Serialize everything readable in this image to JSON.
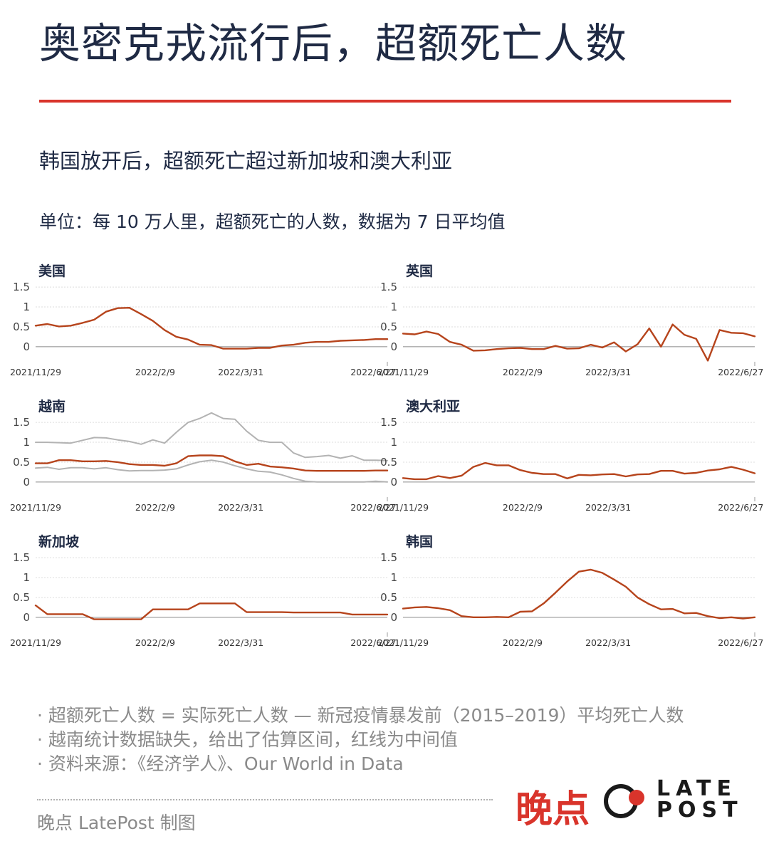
{
  "title": "奥密克戎流行后，超额死亡人数",
  "subtitle": "韩国放开后，超额死亡超过新加坡和澳大利亚",
  "unit": "单位：每 10 万人里，超额死亡的人数，数据为 7 日平均值",
  "colors": {
    "accent": "#d9342b",
    "series": "#b6441c",
    "range": "#b3b3b3",
    "text": "#1f2a44",
    "muted": "#8a8a8a"
  },
  "notes": [
    "· 超额死亡人数 = 实际死亡人数 — 新冠疫情暴发前（2015–2019）平均死亡人数",
    "· 越南统计数据缺失，给出了估算区间，红线为中间值",
    "· 资料来源：《经济学人》、Our World in Data"
  ],
  "credit": "晚点 LatePost 制图",
  "logo": {
    "cn": "晚点",
    "en_line1": "LATE",
    "en_line2": "POST"
  },
  "chart_data": [
    {
      "type": "line",
      "title": "美国",
      "ylim": [
        -0.2,
        1.7
      ],
      "yticks": [
        "1.5",
        "1",
        "0.5",
        "0"
      ],
      "xticks": [
        "2021/11/29",
        "2022/2/9",
        "2022/3/31",
        "2022/6/27"
      ],
      "series": [
        {
          "values": [
            0.53,
            0.57,
            0.51,
            0.53,
            0.6,
            0.68,
            0.88,
            0.97,
            0.98,
            0.82,
            0.65,
            0.42,
            0.25,
            0.18,
            0.05,
            0.04,
            -0.05,
            -0.05,
            -0.05,
            -0.03,
            -0.03,
            0.03,
            0.05,
            0.1,
            0.12,
            0.12,
            0.15,
            0.16,
            0.17,
            0.19,
            0.19
          ]
        }
      ]
    },
    {
      "type": "line",
      "title": "英国",
      "ylim": [
        -0.2,
        1.7
      ],
      "yticks": [
        "1.5",
        "1",
        "0.5",
        "0"
      ],
      "xticks": [
        "2021/11/29",
        "2022/2/9",
        "2022/3/31",
        "2022/6/27"
      ],
      "series": [
        {
          "values": [
            0.33,
            0.31,
            0.38,
            0.32,
            0.12,
            0.05,
            -0.1,
            -0.09,
            -0.06,
            -0.04,
            -0.03,
            -0.06,
            -0.06,
            0.02,
            -0.05,
            -0.04,
            0.05,
            -0.02,
            0.11,
            -0.12,
            0.06,
            0.46,
            0.0,
            0.56,
            0.3,
            0.2,
            -0.35,
            0.42,
            0.35,
            0.34,
            0.26
          ]
        }
      ]
    },
    {
      "type": "line",
      "title": "越南",
      "ylim": [
        -0.2,
        1.7
      ],
      "yticks": [
        "1.5",
        "1",
        "0.5",
        "0"
      ],
      "xticks": [
        "2021/11/29",
        "2022/2/9",
        "2022/3/31",
        "2022/6/27"
      ],
      "series": [
        {
          "name": "",
          "role": "upper",
          "values": [
            1.0,
            1.0,
            0.99,
            0.98,
            1.05,
            1.12,
            1.11,
            1.06,
            1.02,
            0.95,
            1.06,
            0.98,
            1.25,
            1.5,
            1.6,
            1.74,
            1.6,
            1.58,
            1.28,
            1.05,
            1.0,
            1.0,
            0.73,
            0.62,
            0.64,
            0.67,
            0.6,
            0.66,
            0.55,
            0.55,
            0.54
          ]
        },
        {
          "name": "",
          "role": "mid",
          "values": [
            0.47,
            0.47,
            0.55,
            0.55,
            0.52,
            0.52,
            0.53,
            0.5,
            0.45,
            0.43,
            0.43,
            0.41,
            0.47,
            0.65,
            0.67,
            0.67,
            0.65,
            0.52,
            0.43,
            0.46,
            0.39,
            0.37,
            0.34,
            0.29,
            0.28,
            0.28,
            0.28,
            0.28,
            0.28,
            0.29,
            0.29
          ]
        },
        {
          "name": "",
          "role": "lower",
          "values": [
            0.35,
            0.37,
            0.32,
            0.36,
            0.36,
            0.33,
            0.36,
            0.31,
            0.28,
            0.29,
            0.29,
            0.3,
            0.33,
            0.43,
            0.51,
            0.55,
            0.5,
            0.41,
            0.33,
            0.27,
            0.25,
            0.18,
            0.09,
            0.02,
            0.0,
            0.0,
            0.0,
            0.0,
            0.0,
            0.02,
            0.0
          ]
        }
      ]
    },
    {
      "type": "line",
      "title": "澳大利亚",
      "ylim": [
        -0.2,
        1.7
      ],
      "yticks": [
        "1.5",
        "1",
        "0.5",
        "0"
      ],
      "xticks": [
        "2021/11/29",
        "2022/2/9",
        "2022/3/31",
        "2022/6/27"
      ],
      "series": [
        {
          "values": [
            0.1,
            0.07,
            0.07,
            0.15,
            0.1,
            0.16,
            0.38,
            0.48,
            0.42,
            0.42,
            0.3,
            0.23,
            0.2,
            0.2,
            0.09,
            0.18,
            0.17,
            0.19,
            0.2,
            0.14,
            0.19,
            0.2,
            0.28,
            0.28,
            0.21,
            0.23,
            0.29,
            0.32,
            0.38,
            0.31,
            0.22
          ]
        }
      ]
    },
    {
      "type": "line",
      "title": "新加坡",
      "ylim": [
        -0.2,
        1.7
      ],
      "yticks": [
        "1.5",
        "1",
        "0.5",
        "0"
      ],
      "xticks": [
        "2021/11/29",
        "2022/2/9",
        "2022/3/31",
        "2022/6/27"
      ],
      "series": [
        {
          "values": [
            0.3,
            0.08,
            0.08,
            0.08,
            0.08,
            -0.05,
            -0.05,
            -0.05,
            -0.05,
            -0.05,
            0.2,
            0.2,
            0.2,
            0.2,
            0.35,
            0.35,
            0.35,
            0.35,
            0.13,
            0.13,
            0.13,
            0.13,
            0.12,
            0.12,
            0.12,
            0.12,
            0.12,
            0.07,
            0.07,
            0.07,
            0.07
          ]
        }
      ]
    },
    {
      "type": "line",
      "title": "韩国",
      "ylim": [
        -0.2,
        1.7
      ],
      "yticks": [
        "1.5",
        "1",
        "0.5",
        "0"
      ],
      "xticks": [
        "2021/11/29",
        "2022/2/9",
        "2022/3/31",
        "2022/6/27"
      ],
      "series": [
        {
          "values": [
            0.22,
            0.25,
            0.26,
            0.23,
            0.18,
            0.03,
            0.0,
            0.0,
            0.01,
            0.0,
            0.14,
            0.15,
            0.35,
            0.62,
            0.9,
            1.15,
            1.2,
            1.12,
            0.95,
            0.77,
            0.5,
            0.33,
            0.2,
            0.21,
            0.1,
            0.11,
            0.03,
            -0.02,
            0.0,
            -0.03,
            0.0
          ]
        }
      ]
    }
  ]
}
